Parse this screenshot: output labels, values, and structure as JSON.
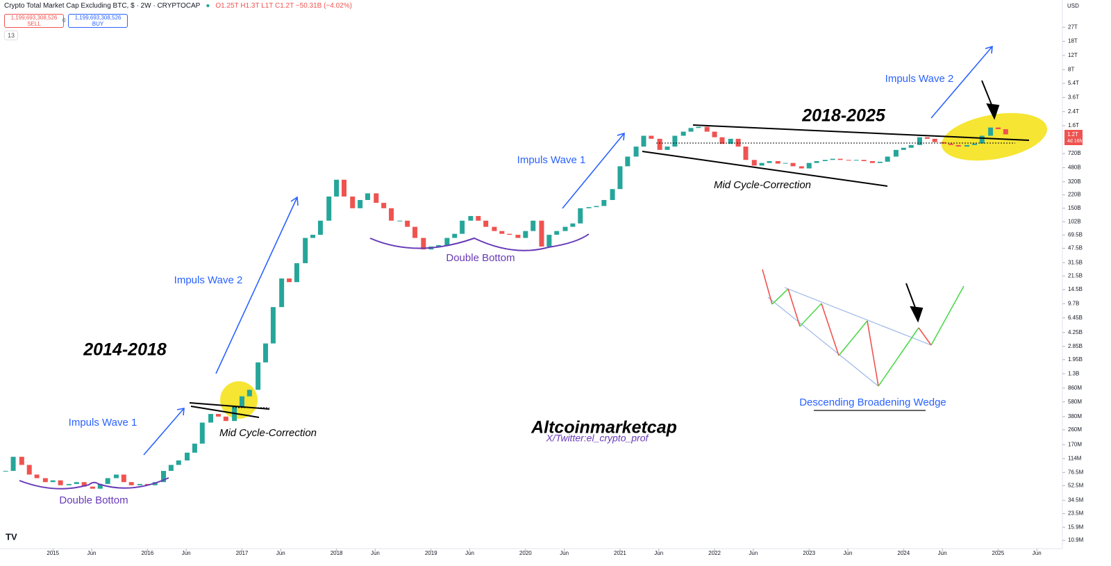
{
  "header": {
    "title": "Crypto Total Market Cap Excluding BTC, $ · 2W · CRYPTOCAP",
    "ohlc": "O1.25T H1.3T L1T C1.2T −50.31B (−4.02%)",
    "sell_price": "1,199,693,308,526",
    "sell": "SELL",
    "spread": "0",
    "buy_price": "1,199,693,308,526",
    "buy": "BUY",
    "indicator_count": "13",
    "currency": "USD",
    "price_label": "1.2T",
    "countdown": "4d 16h"
  },
  "chart_data": {
    "type": "candlestick",
    "log_scale": true,
    "up_color": "#26a69a",
    "down_color": "#ef5350",
    "x": [
      2014.5,
      2014.58,
      2014.67,
      2014.75,
      2014.83,
      2014.92,
      2015.0,
      2015.08,
      2015.17,
      2015.25,
      2015.33,
      2015.42,
      2015.5,
      2015.58,
      2015.67,
      2015.75,
      2015.83,
      2015.92,
      2016.0,
      2016.08,
      2016.17,
      2016.25,
      2016.33,
      2016.42,
      2016.5,
      2016.58,
      2016.67,
      2016.75,
      2016.83,
      2016.92,
      2017.0,
      2017.08,
      2017.17,
      2017.25,
      2017.33,
      2017.42,
      2017.5,
      2017.58,
      2017.67,
      2017.75,
      2017.83,
      2017.92,
      2018.0,
      2018.08,
      2018.17,
      2018.25,
      2018.33,
      2018.42,
      2018.5,
      2018.58,
      2018.67,
      2018.75,
      2018.83,
      2018.92,
      2019.0,
      2019.08,
      2019.17,
      2019.25,
      2019.33,
      2019.42,
      2019.5,
      2019.58,
      2019.67,
      2019.75,
      2019.83,
      2019.92,
      2020.0,
      2020.08,
      2020.17,
      2020.25,
      2020.33,
      2020.42,
      2020.5,
      2020.58,
      2020.67,
      2020.75,
      2020.83,
      2020.92,
      2021.0,
      2021.08,
      2021.17,
      2021.25,
      2021.33,
      2021.42,
      2021.5,
      2021.58,
      2021.67,
      2021.75,
      2021.83,
      2021.92,
      2022.0,
      2022.08,
      2022.17,
      2022.25,
      2022.33,
      2022.42,
      2022.5,
      2022.58,
      2022.67,
      2022.75,
      2022.83,
      2022.92,
      2023.0,
      2023.08,
      2023.17,
      2023.25,
      2023.33,
      2023.42,
      2023.5,
      2023.58,
      2023.67,
      2023.75,
      2023.83,
      2023.92,
      2024.0,
      2024.08,
      2024.17,
      2024.25,
      2024.33,
      2024.42,
      2024.5,
      2024.58,
      2024.67,
      2024.75,
      2024.83,
      2024.92,
      2025.0,
      2025.08
    ],
    "values": [
      80000000.0,
      120000000.0,
      95000000.0,
      72000000.0,
      65000000.0,
      58000000.0,
      61000000.0,
      53000000.0,
      55000000.0,
      58000000.0,
      51000000.0,
      48000000.0,
      55000000.0,
      65000000.0,
      72000000.0,
      58000000.0,
      53000000.0,
      55000000.0,
      53000000.0,
      58000000.0,
      80000000.0,
      95000000.0,
      108000000.0,
      135000000.0,
      175000000.0,
      320000000.0,
      410000000.0,
      380000000.0,
      335000000.0,
      500000000.0,
      680000000.0,
      820000000.0,
      1800000000.0,
      3100000000.0,
      8800000000.0,
      20000000000.0,
      18000000000.0,
      31000000000.0,
      64000000000.0,
      70000000000.0,
      105000000000.0,
      210000000000.0,
      340000000000.0,
      210000000000.0,
      150000000000.0,
      190000000000.0,
      230000000000.0,
      175000000000.0,
      150000000000.0,
      105000000000.0,
      105000000000.0,
      88000000000.0,
      64000000000.0,
      46000000000.0,
      50000000000.0,
      52000000000.0,
      64000000000.0,
      72000000000.0,
      105000000000.0,
      120000000000.0,
      105000000000.0,
      88000000000.0,
      78000000000.0,
      72000000000.0,
      70000000000.0,
      64000000000.0,
      78000000000.0,
      105000000000.0,
      50000000000.0,
      70000000000.0,
      78000000000.0,
      88000000000.0,
      97000000000.0,
      150000000000.0,
      155000000000.0,
      160000000000.0,
      190000000000.0,
      260000000000.0,
      500000000000.0,
      660000000000.0,
      880000000000.0,
      1200000000000.0,
      1100000000000.0,
      800000000000.0,
      880000000000.0,
      1200000000000.0,
      1350000000000.0,
      1500000000000.0,
      1550000000000.0,
      1350000000000.0,
      1150000000000.0,
      950000000000.0,
      1100000000000.0,
      880000000000.0,
      600000000000.0,
      510000000000.0,
      550000000000.0,
      580000000000.0,
      540000000000.0,
      550000000000.0,
      500000000000.0,
      470000000000.0,
      550000000000.0,
      580000000000.0,
      600000000000.0,
      620000000000.0,
      600000000000.0,
      590000000000.0,
      600000000000.0,
      580000000000.0,
      550000000000.0,
      570000000000.0,
      660000000000.0,
      800000000000.0,
      850000000000.0,
      920000000000.0,
      1150000000000.0,
      1100000000000.0,
      1000000000000.0,
      960000000000.0,
      920000000000.0,
      880000000000.0,
      920000000000.0,
      960000000000.0,
      1200000000000.0,
      1520000000000.0,
      1450000000000.0,
      1250000000000.0
    ],
    "xlim": [
      2014.44,
      2025.68
    ],
    "xticks": [
      2015,
      {
        "value": 2015.41,
        "label": "Jun"
      },
      2016,
      {
        "value": 2016.41,
        "label": "Jun"
      },
      2017,
      {
        "value": 2017.41,
        "label": "Jun"
      },
      2018,
      {
        "value": 2018.41,
        "label": "Jun"
      },
      2019,
      {
        "value": 2019.41,
        "label": "Jun"
      },
      2020,
      {
        "value": 2020.41,
        "label": "Jun"
      },
      2021,
      {
        "value": 2021.41,
        "label": "Jun"
      },
      2022,
      {
        "value": 2022.41,
        "label": "Jun"
      },
      2023,
      {
        "value": 2023.41,
        "label": "Jun"
      },
      2024,
      {
        "value": 2024.41,
        "label": "Jun"
      },
      2025,
      {
        "value": 2025.41,
        "label": "Jun"
      }
    ],
    "ylim": [
      8600000.0,
      59000000000000.0
    ],
    "yticks": [
      {
        "value": 27000000000000.0,
        "label": "27T"
      },
      {
        "value": 18000000000000.0,
        "label": "18T"
      },
      {
        "value": 12000000000000.0,
        "label": "12T"
      },
      {
        "value": 8000000000000.0,
        "label": "8T"
      },
      {
        "value": 5400000000000.0,
        "label": "5.4T"
      },
      {
        "value": 3600000000000.0,
        "label": "3.6T"
      },
      {
        "value": 2400000000000.0,
        "label": "2.4T"
      },
      {
        "value": 1600000000000.0,
        "label": "1.6T"
      },
      {
        "value": 720000000000.0,
        "label": "720B"
      },
      {
        "value": 480000000000.0,
        "label": "480B"
      },
      {
        "value": 320000000000.0,
        "label": "320B"
      },
      {
        "value": 220000000000.0,
        "label": "220B"
      },
      {
        "value": 150000000000.0,
        "label": "150B"
      },
      {
        "value": 102000000000.0,
        "label": "102B"
      },
      {
        "value": 69500000000.0,
        "label": "69.5B"
      },
      {
        "value": 47500000000.0,
        "label": "47.5B"
      },
      {
        "value": 31500000000.0,
        "label": "31.5B"
      },
      {
        "value": 21500000000.0,
        "label": "21.5B"
      },
      {
        "value": 14500000000.0,
        "label": "14.5B"
      },
      {
        "value": 9700000000.0,
        "label": "9.7B"
      },
      {
        "value": 6450000000.0,
        "label": "6.45B"
      },
      {
        "value": 4250000000.0,
        "label": "4.25B"
      },
      {
        "value": 2850000000.0,
        "label": "2.85B"
      },
      {
        "value": 1950000000.0,
        "label": "1.95B"
      },
      {
        "value": 1300000000.0,
        "label": "1.3B"
      },
      {
        "value": 860000000.0,
        "label": "860M"
      },
      {
        "value": 580000000.0,
        "label": "580M"
      },
      {
        "value": 380000000.0,
        "label": "380M"
      },
      {
        "value": 260000000.0,
        "label": "260M"
      },
      {
        "value": 170000000.0,
        "label": "170M"
      },
      {
        "value": 114000000.0,
        "label": "114M"
      },
      {
        "value": 76500000.0,
        "label": "76.5M"
      },
      {
        "value": 52500000.0,
        "label": "52.5M"
      },
      {
        "value": 34500000.0,
        "label": "34.5M"
      },
      {
        "value": 23500000.0,
        "label": "23.5M"
      },
      {
        "value": 15900000.0,
        "label": "15.9M"
      },
      {
        "value": 10900000.0,
        "label": "10.9M"
      }
    ],
    "annotations": [
      "Impuls Wave 1",
      "Mid Cycle-Correction",
      "Double Bottom",
      "2014-2018",
      "Impuls Wave 2",
      "Double Bottom",
      "Impuls Wave 1",
      "Mid Cycle-Correction",
      "2018-2025",
      "Impuls Wave 2",
      "Descending Broadening Wedge",
      "Altcoinmarketcap",
      "X/Twitter:el_crypto_prof"
    ]
  }
}
